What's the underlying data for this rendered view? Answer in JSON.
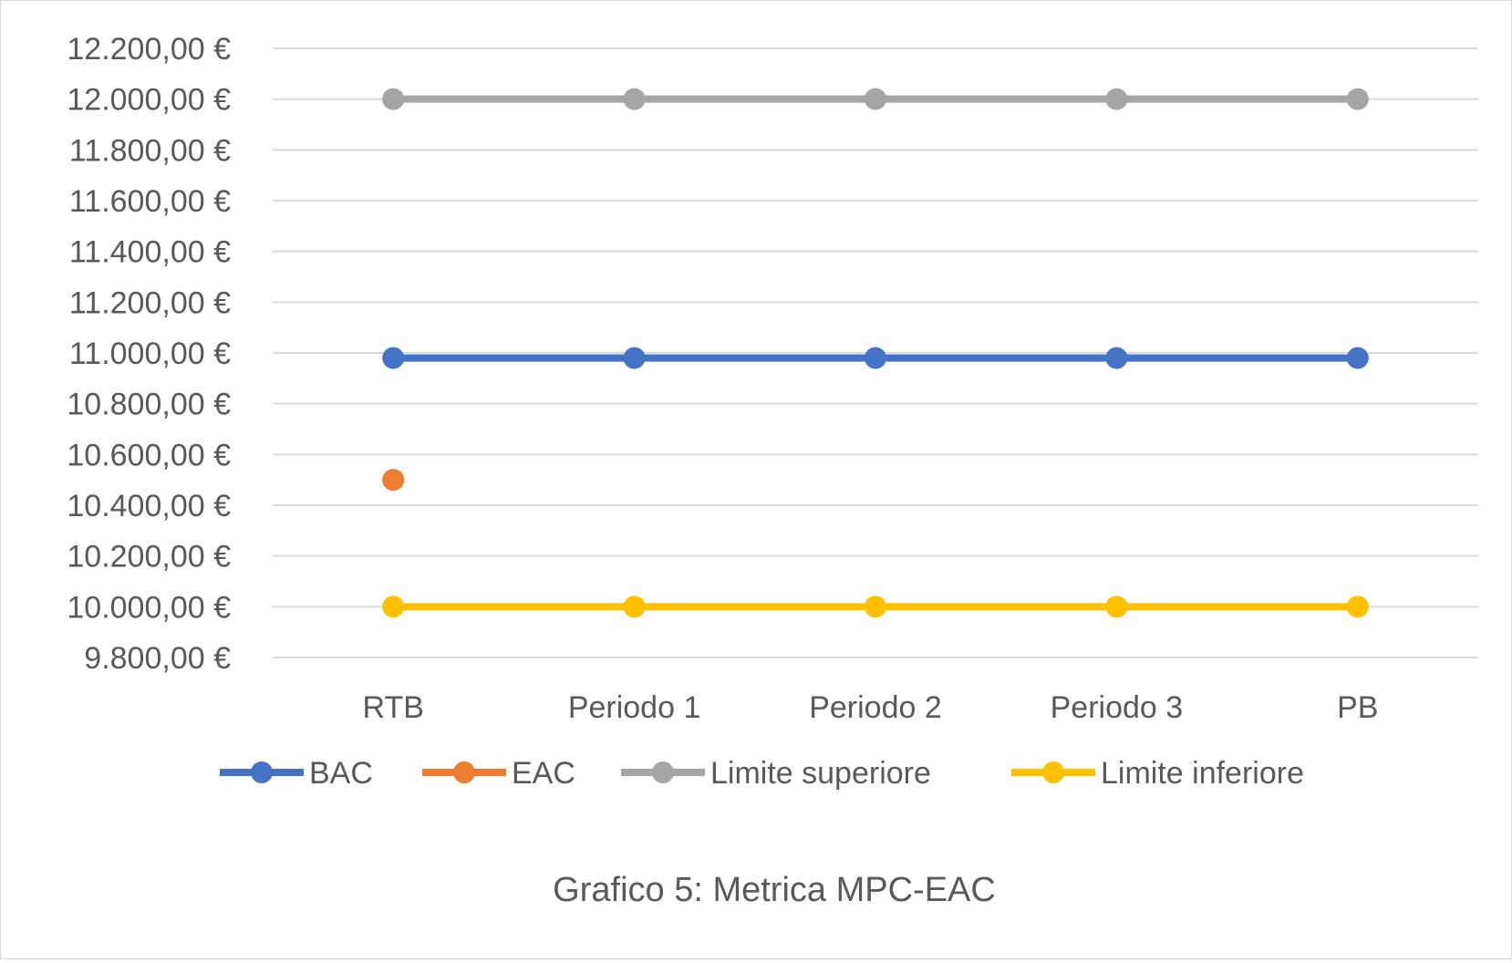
{
  "chart_data": {
    "type": "line",
    "title": "",
    "caption": "Grafico 5: Metrica MPC-EAC",
    "xlabel": "",
    "ylabel": "",
    "categories": [
      "RTB",
      "Periodo 1",
      "Periodo 2",
      "Periodo 3",
      "PB"
    ],
    "ylim": [
      9800,
      12200
    ],
    "yticks": [
      9800,
      10000,
      10200,
      10400,
      10600,
      10800,
      11000,
      11200,
      11400,
      11600,
      11800,
      12000,
      12200
    ],
    "ytick_labels": [
      "9.800,00 €",
      "10.000,00 €",
      "10.200,00 €",
      "10.400,00 €",
      "10.600,00 €",
      "10.800,00 €",
      "11.000,00 €",
      "11.200,00 €",
      "11.400,00 €",
      "11.600,00 €",
      "11.800,00 €",
      "12.000,00 €",
      "12.200,00 €"
    ],
    "grid": true,
    "legend_position": "bottom",
    "series": [
      {
        "name": "BAC",
        "color": "#4472c4",
        "values": [
          10980,
          10980,
          10980,
          10980,
          10980
        ]
      },
      {
        "name": "EAC",
        "color": "#ed7d31",
        "values": [
          10500,
          null,
          null,
          null,
          null
        ]
      },
      {
        "name": "Limite superiore",
        "color": "#a5a5a5",
        "values": [
          12000,
          12000,
          12000,
          12000,
          12000
        ]
      },
      {
        "name": "Limite inferiore",
        "color": "#ffc000",
        "values": [
          10000,
          10000,
          10000,
          10000,
          10000
        ]
      }
    ]
  }
}
